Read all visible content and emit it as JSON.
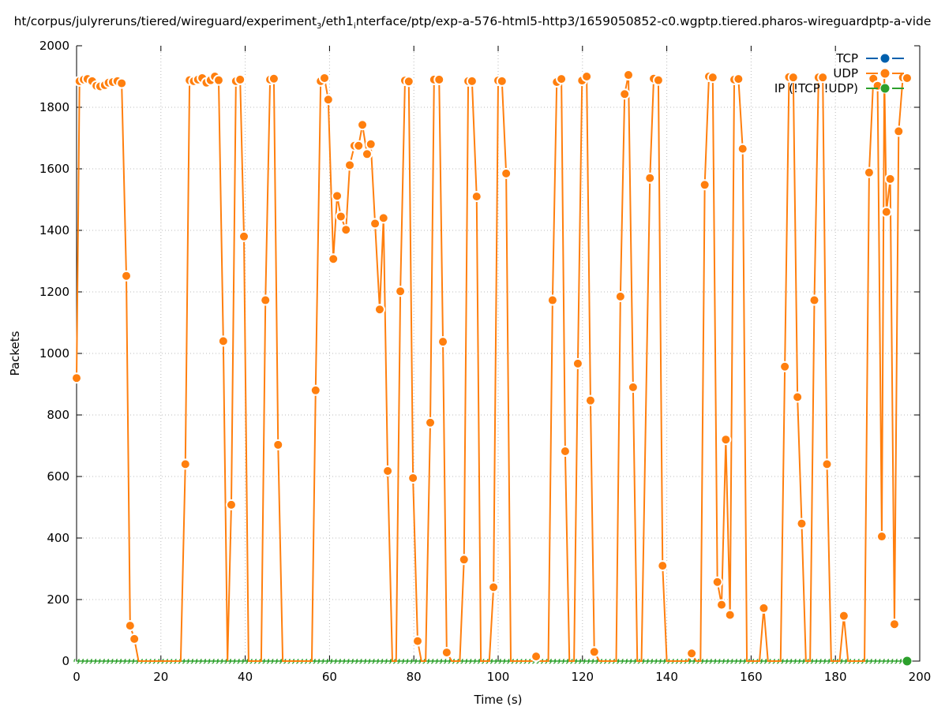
{
  "chart_data": {
    "type": "line",
    "title_parts": [
      "ht/corpus/julyreruns/tiered/wireguard/experiment",
      "3",
      "/eth1",
      "i",
      "nterface/ptp/exp-a-576-html5-http3/1659050852-c0.wgptp.tiered.pharos-wireguardptp-a-vide"
    ],
    "xlabel": "Time (s)",
    "ylabel": "Packets",
    "xlim": [
      0,
      200
    ],
    "ylim": [
      0,
      2000
    ],
    "xticks": [
      0,
      20,
      40,
      60,
      80,
      100,
      120,
      140,
      160,
      180,
      200
    ],
    "yticks": [
      0,
      200,
      400,
      600,
      800,
      1000,
      1200,
      1400,
      1600,
      1800,
      2000
    ],
    "grid": true,
    "legend_position": "top-right",
    "colors": {
      "tcp": "#0060ad",
      "udp": "#ff7f0e",
      "ip": "#2ca02c"
    },
    "series": [
      {
        "name": "TCP",
        "key": "tcp",
        "x": [],
        "y": []
      },
      {
        "name": "UDP",
        "key": "udp",
        "x": [
          0,
          0.7,
          1.7,
          2.6,
          3.7,
          4.7,
          5.6,
          6.7,
          7.6,
          8.6,
          9.7,
          10.7,
          11.8,
          12.7,
          13.7,
          14.7,
          24.7,
          25.8,
          26.8,
          27.8,
          28.8,
          29.8,
          30.8,
          31.8,
          32.8,
          33.7,
          34.8,
          35.8,
          36.7,
          37.8,
          38.8,
          39.7,
          40.8,
          43.8,
          44.8,
          45.9,
          46.8,
          47.8,
          48.9,
          55.8,
          56.7,
          57.9,
          58.8,
          59.7,
          60.9,
          61.8,
          62.7,
          63.9,
          64.8,
          65.9,
          66.9,
          67.8,
          68.9,
          69.8,
          70.8,
          71.9,
          72.8,
          73.8,
          74.9,
          75.8,
          76.8,
          77.9,
          78.8,
          79.8,
          80.9,
          81.8,
          82.8,
          83.9,
          84.8,
          86,
          86.9,
          87.8,
          89,
          90.9,
          91.9,
          92.9,
          93.8,
          94.9,
          95.9,
          97.9,
          98.9,
          100,
          100.9,
          101.9,
          103,
          108,
          109,
          110,
          111.9,
          112.9,
          113.9,
          115,
          115.9,
          116.9,
          118,
          118.9,
          119.9,
          121,
          121.9,
          122.8,
          124,
          128,
          129,
          130,
          130.9,
          132,
          133,
          134,
          136,
          136.9,
          138,
          139,
          140,
          145,
          145.9,
          147,
          148,
          149,
          150,
          150.9,
          152,
          153,
          154,
          155,
          156,
          157,
          158,
          159,
          162,
          163,
          164,
          167,
          168,
          169,
          170,
          171,
          172,
          173,
          174,
          175,
          176,
          177,
          178,
          179,
          180,
          181,
          182,
          183,
          186.9,
          188,
          189,
          190,
          191,
          191.6,
          192.1,
          193,
          194,
          195,
          196,
          197
        ],
        "y": [
          920,
          1885,
          1890,
          1892,
          1885,
          1870,
          1868,
          1872,
          1880,
          1882,
          1885,
          1878,
          1252,
          115,
          72,
          0,
          0,
          640,
          1888,
          1885,
          1890,
          1895,
          1880,
          1888,
          1900,
          1888,
          1040,
          0,
          508,
          1885,
          1890,
          1380,
          0,
          0,
          1173,
          1890,
          1893,
          703,
          0,
          0,
          880,
          1885,
          1895,
          1825,
          1307,
          1512,
          1445,
          1402,
          1612,
          1675,
          1675,
          1743,
          1648,
          1680,
          1422,
          1143,
          1440,
          618,
          0,
          0,
          1202,
          1887,
          1884,
          595,
          65,
          0,
          0,
          775,
          1890,
          1890,
          1038,
          28,
          0,
          0,
          330,
          1885,
          1885,
          1510,
          0,
          0,
          240,
          1887,
          1885,
          1585,
          0,
          0,
          15,
          0,
          0,
          1173,
          1882,
          1892,
          682,
          0,
          0,
          967,
          1887,
          1900,
          847,
          30,
          0,
          0,
          1185,
          1843,
          1905,
          890,
          0,
          0,
          1570,
          1893,
          1888,
          310,
          0,
          0,
          25,
          0,
          0,
          1548,
          1900,
          1897,
          257,
          183,
          720,
          150,
          1890,
          1892,
          1665,
          0,
          0,
          172,
          0,
          0,
          957,
          1898,
          1897,
          858,
          447,
          0,
          0,
          1173,
          1897,
          1897,
          640,
          0,
          0,
          0,
          147,
          0,
          0,
          1588,
          1893,
          1870,
          405,
          1910,
          1460,
          1567,
          120,
          1722,
          1897,
          1895
        ]
      },
      {
        "name": "IP (!TCP !UDP)",
        "key": "ip",
        "x_start": 0,
        "x_end": 197,
        "x_step": 1,
        "value": 0
      }
    ]
  }
}
